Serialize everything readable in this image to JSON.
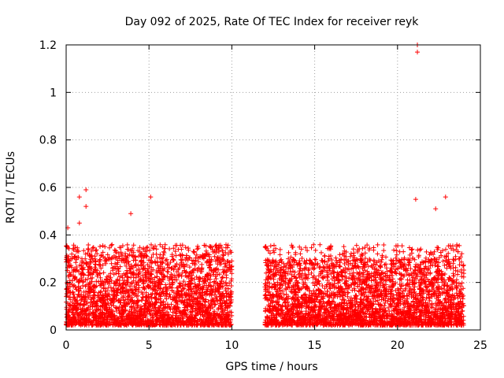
{
  "chart_data": {
    "type": "scatter",
    "title": "Day 092 of 2025, Rate Of TEC Index for receiver reyk",
    "xlabel": "GPS time / hours",
    "ylabel": "ROTI / TECUs",
    "xlim": [
      0,
      25
    ],
    "ylim": [
      0,
      1.2
    ],
    "grid": true,
    "marker": "+",
    "color": "#ff0000",
    "x_ticks": [
      0,
      5,
      10,
      15,
      20,
      25
    ],
    "x_tick_labels": [
      "0",
      "5",
      "10",
      "15",
      "20",
      "25"
    ],
    "y_ticks": [
      0,
      0.2,
      0.4,
      0.6,
      0.8,
      1.0,
      1.2
    ],
    "y_tick_labels": [
      "0",
      "0.2",
      "0.4",
      "0.6",
      "0.8",
      "1",
      "1.2"
    ],
    "segments": [
      {
        "x_range": [
          0,
          10
        ],
        "y_center": [
          0.02,
          0.32
        ],
        "peak": 0.36
      },
      {
        "x_range": [
          12,
          24
        ],
        "y_center": [
          0.02,
          0.3
        ],
        "peak": 0.36
      }
    ],
    "outliers": [
      {
        "x": 0.1,
        "y": 0.43
      },
      {
        "x": 0.8,
        "y": 0.56
      },
      {
        "x": 0.8,
        "y": 0.45
      },
      {
        "x": 1.2,
        "y": 0.59
      },
      {
        "x": 1.2,
        "y": 0.52
      },
      {
        "x": 5.1,
        "y": 0.56
      },
      {
        "x": 3.9,
        "y": 0.49
      },
      {
        "x": 21.2,
        "y": 1.2
      },
      {
        "x": 21.2,
        "y": 1.17
      },
      {
        "x": 21.1,
        "y": 0.55
      },
      {
        "x": 22.3,
        "y": 0.51
      },
      {
        "x": 22.9,
        "y": 0.56
      },
      {
        "x": 14.2,
        "y": 0.34
      }
    ]
  }
}
